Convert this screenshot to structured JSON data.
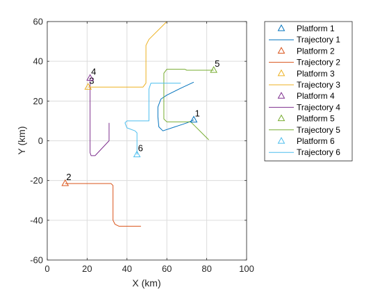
{
  "chart_data": {
    "type": "line",
    "xlabel": "X (km)",
    "ylabel": "Y (km)",
    "xlim": [
      0,
      100
    ],
    "ylim": [
      -60,
      60
    ],
    "xticks": [
      0,
      20,
      40,
      60,
      80,
      100
    ],
    "yticks": [
      -60,
      -40,
      -20,
      0,
      20,
      40,
      60
    ],
    "grid": true,
    "legend_placement": "outside-right",
    "platforms": [
      {
        "name": "Platform 1",
        "label": "1",
        "x": 73.5,
        "y": 10.5,
        "color": "#0072BD"
      },
      {
        "name": "Platform 2",
        "label": "2",
        "x": 9,
        "y": -21.5,
        "color": "#D95319"
      },
      {
        "name": "Platform 3",
        "label": "3",
        "x": 20.5,
        "y": 27,
        "color": "#EDB120"
      },
      {
        "name": "Platform 4",
        "label": "4",
        "x": 21.5,
        "y": 31.5,
        "color": "#7E2F8E"
      },
      {
        "name": "Platform 5",
        "label": "5",
        "x": 83.5,
        "y": 35.5,
        "color": "#77AC30"
      },
      {
        "name": "Platform 6",
        "label": "6",
        "x": 45,
        "y": -7,
        "color": "#4DBEEE"
      }
    ],
    "trajectories": [
      {
        "name": "Trajectory 1",
        "color": "#0072BD",
        "points": [
          [
            73.5,
            10.5
          ],
          [
            70,
            9
          ],
          [
            64,
            7
          ],
          [
            58,
            5
          ],
          [
            56,
            7
          ],
          [
            55.5,
            12
          ],
          [
            55.5,
            17
          ],
          [
            57,
            21
          ],
          [
            60,
            23
          ],
          [
            67,
            26.5
          ],
          [
            73.5,
            29.5
          ]
        ]
      },
      {
        "name": "Trajectory 2",
        "color": "#D95319",
        "points": [
          [
            9,
            -21.5
          ],
          [
            32,
            -21.5
          ],
          [
            33,
            -22.5
          ],
          [
            33,
            -40
          ],
          [
            34,
            -42
          ],
          [
            36,
            -43
          ],
          [
            47,
            -43
          ]
        ]
      },
      {
        "name": "Trajectory 3",
        "color": "#EDB120",
        "points": [
          [
            20.5,
            27
          ],
          [
            48,
            27
          ],
          [
            49.5,
            29
          ],
          [
            49.5,
            48
          ],
          [
            51,
            51
          ],
          [
            60,
            60
          ]
        ]
      },
      {
        "name": "Trajectory 4",
        "color": "#7E2F8E",
        "points": [
          [
            21.5,
            31.5
          ],
          [
            21.5,
            -6
          ],
          [
            22,
            -7.5
          ],
          [
            24,
            -7.5
          ],
          [
            31,
            0
          ],
          [
            31,
            9
          ]
        ]
      },
      {
        "name": "Trajectory 5",
        "color": "#77AC30",
        "points": [
          [
            83.5,
            35.5
          ],
          [
            70,
            35.5
          ],
          [
            69,
            36
          ],
          [
            60,
            36
          ],
          [
            58.5,
            34
          ],
          [
            58.5,
            11
          ],
          [
            60,
            9.5
          ],
          [
            72,
            9.5
          ],
          [
            81,
            0.5
          ]
        ]
      },
      {
        "name": "Trajectory 6",
        "color": "#4DBEEE",
        "points": [
          [
            45,
            -7
          ],
          [
            45,
            4
          ],
          [
            44,
            5
          ],
          [
            40,
            6.5
          ],
          [
            39,
            9
          ],
          [
            40,
            10
          ],
          [
            51,
            10
          ],
          [
            51,
            26
          ],
          [
            52,
            29
          ],
          [
            67,
            29
          ]
        ]
      }
    ]
  }
}
